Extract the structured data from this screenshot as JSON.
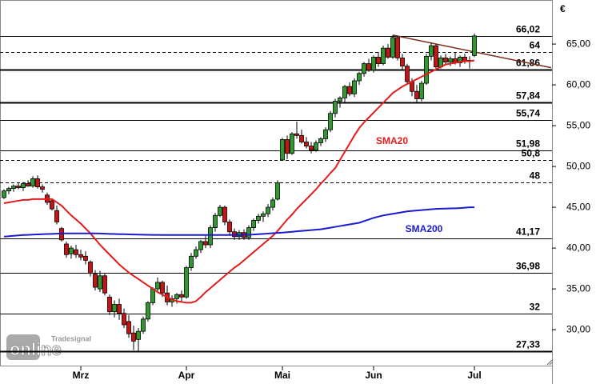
{
  "chart_data": {
    "type": "candlestick",
    "unit": "€",
    "watermark": {
      "brand": "Tradesignal",
      "product": "online"
    },
    "categories": [
      null,
      null,
      null,
      null,
      null,
      null,
      null,
      null,
      null,
      null,
      null,
      null,
      null,
      null,
      null,
      null,
      "Mrz",
      null,
      null,
      null,
      null,
      null,
      null,
      null,
      null,
      null,
      null,
      null,
      null,
      null,
      null,
      null,
      null,
      null,
      null,
      null,
      null,
      null,
      "Apr",
      null,
      null,
      null,
      null,
      null,
      null,
      null,
      null,
      null,
      null,
      null,
      null,
      null,
      null,
      null,
      null,
      null,
      null,
      null,
      "Mai",
      null,
      null,
      null,
      null,
      null,
      null,
      null,
      null,
      null,
      null,
      null,
      null,
      null,
      null,
      null,
      null,
      null,
      null,
      "Jun",
      null,
      null,
      null,
      null,
      null,
      null,
      null,
      null,
      null,
      null,
      null,
      null,
      null,
      null,
      null,
      null,
      null,
      null,
      null,
      null,
      "Jul"
    ],
    "open": [
      46.2,
      47.0,
      47.3,
      47.6,
      47.4,
      47.9,
      47.6,
      48.5,
      47.5,
      46.5,
      45.8,
      44.6,
      42.4,
      40.5,
      39.3,
      39.8,
      39.2,
      39.0,
      38.3,
      36.8,
      35.0,
      36.6,
      34.0,
      32.2,
      33.1,
      32.0,
      31.0,
      29.6,
      28.8,
      29.8,
      31.3,
      33.3,
      35.0,
      35.8,
      34.5,
      33.4,
      33.8,
      34.3,
      34.0,
      37.6,
      39.0,
      39.8,
      40.8,
      40.4,
      42.5,
      44.0,
      45.0,
      43.2,
      42.0,
      41.4,
      41.9,
      41.3,
      42.5,
      43.4,
      43.9,
      44.2,
      45.0,
      46.0,
      50.8,
      53.3,
      51.6,
      54.0,
      53.8,
      53.0,
      52.5,
      52.0,
      52.9,
      53.4,
      54.5,
      56.5,
      58.0,
      58.4,
      59.8,
      58.9,
      60.5,
      61.4,
      62.6,
      61.8,
      63.4,
      62.6,
      64.5,
      63.4,
      65.8,
      63.3,
      62.3,
      60.4,
      59.2,
      58.3,
      60.2,
      63.5,
      64.8,
      62.2,
      63.3,
      62.8,
      63.2,
      62.7,
      63.4,
      62.9,
      63.6
    ],
    "high": [
      47.2,
      47.5,
      47.8,
      48.0,
      48.1,
      48.3,
      48.8,
      48.9,
      47.8,
      46.8,
      46.0,
      45.2,
      42.6,
      40.8,
      40.3,
      40.4,
      39.8,
      39.6,
      38.5,
      37.3,
      37.2,
      37.0,
      34.3,
      33.6,
      33.8,
      32.6,
      31.8,
      30.5,
      30.2,
      31.6,
      33.5,
      35.2,
      36.4,
      36.0,
      35.4,
      34.2,
      34.5,
      34.8,
      37.8,
      39.4,
      40.2,
      41.0,
      41.5,
      42.8,
      44.3,
      45.3,
      45.2,
      43.5,
      42.4,
      42.2,
      42.3,
      42.8,
      43.6,
      44.2,
      44.5,
      45.4,
      46.2,
      48.3,
      53.5,
      53.8,
      54.2,
      55.5,
      54.5,
      53.6,
      53.0,
      53.2,
      53.6,
      54.8,
      56.8,
      58.3,
      58.6,
      60.0,
      60.3,
      60.8,
      61.6,
      62.8,
      63.2,
      63.6,
      64.0,
      64.8,
      65.0,
      66.1,
      66.0,
      63.8,
      62.6,
      60.8,
      60.0,
      60.5,
      63.8,
      65.2,
      65.0,
      63.6,
      63.8,
      63.5,
      64.0,
      63.6,
      63.8,
      63.5,
      66.3
    ],
    "low": [
      46.0,
      46.6,
      46.9,
      47.2,
      47.0,
      47.5,
      47.4,
      47.3,
      46.8,
      45.3,
      44.6,
      42.9,
      40.8,
      38.8,
      38.7,
      38.8,
      38.5,
      38.0,
      36.5,
      34.8,
      34.6,
      34.2,
      31.8,
      31.5,
      31.2,
      30.2,
      29.0,
      27.5,
      27.4,
      29.5,
      31.0,
      33.0,
      34.5,
      34.0,
      33.0,
      32.8,
      33.2,
      33.5,
      33.8,
      37.2,
      38.7,
      39.4,
      40.0,
      40.0,
      42.0,
      43.8,
      42.8,
      41.6,
      41.0,
      41.0,
      41.0,
      41.0,
      42.1,
      43.0,
      43.2,
      43.8,
      44.6,
      45.8,
      50.7,
      50.9,
      51.4,
      53.4,
      52.8,
      52.2,
      51.6,
      51.8,
      52.5,
      53.0,
      54.2,
      56.0,
      57.2,
      57.8,
      58.6,
      58.5,
      60.0,
      61.0,
      61.6,
      61.5,
      62.2,
      62.4,
      63.2,
      63.2,
      63.0,
      61.8,
      60.0,
      58.6,
      57.8,
      58.0,
      60.0,
      63.0,
      61.8,
      62.0,
      62.4,
      62.3,
      62.5,
      62.2,
      62.6,
      62.0,
      63.4
    ],
    "close": [
      47.0,
      47.3,
      47.6,
      47.4,
      47.9,
      47.6,
      48.5,
      47.5,
      47.2,
      45.6,
      44.8,
      43.2,
      41.0,
      39.2,
      40.0,
      39.2,
      38.9,
      38.5,
      36.9,
      35.2,
      36.6,
      34.5,
      32.2,
      33.1,
      32.0,
      30.6,
      29.5,
      28.6,
      29.8,
      31.3,
      33.3,
      35.0,
      35.8,
      34.5,
      33.4,
      33.8,
      34.3,
      34.0,
      37.6,
      39.0,
      39.8,
      40.8,
      40.4,
      42.5,
      44.0,
      45.0,
      43.2,
      42.0,
      41.4,
      41.9,
      41.3,
      42.5,
      43.4,
      43.9,
      44.2,
      45.0,
      45.9,
      48.0,
      53.3,
      51.6,
      54.0,
      53.8,
      53.0,
      52.5,
      52.0,
      52.9,
      53.4,
      54.5,
      56.5,
      58.0,
      58.4,
      59.8,
      58.9,
      60.5,
      61.4,
      62.6,
      61.8,
      63.4,
      62.6,
      64.5,
      63.4,
      65.8,
      63.3,
      62.3,
      60.4,
      59.2,
      58.3,
      60.2,
      63.5,
      64.8,
      62.2,
      63.3,
      62.8,
      63.2,
      62.7,
      63.4,
      62.9,
      63.0,
      66.0
    ],
    "up_color": "#2e9a2e",
    "down_color": "#cc1111",
    "series": [
      {
        "name": "SMA20",
        "color": "#e31b1b",
        "values": [
          45.5,
          45.6,
          45.7,
          45.8,
          45.9,
          45.9,
          46.0,
          46.0,
          46.0,
          46.0,
          46.0,
          45.6,
          45.2,
          44.6,
          44.0,
          43.5,
          43.0,
          42.4,
          41.8,
          41.1,
          40.4,
          39.8,
          39.2,
          38.6,
          38.0,
          37.5,
          37.0,
          36.6,
          36.2,
          35.8,
          35.4,
          35.0,
          34.6,
          34.3,
          34.0,
          33.7,
          33.5,
          33.4,
          33.3,
          33.3,
          33.5,
          34.0,
          34.6,
          35.1,
          35.6,
          36.1,
          36.6,
          37.1,
          37.6,
          38.0,
          38.5,
          39.0,
          39.5,
          40.0,
          40.5,
          41.0,
          41.5,
          42.1,
          42.8,
          43.5,
          44.1,
          44.8,
          45.4,
          46.0,
          46.6,
          47.2,
          47.9,
          48.5,
          49.2,
          49.8,
          50.8,
          51.8,
          52.8,
          53.8,
          54.7,
          55.4,
          56.0,
          56.6,
          57.2,
          57.8,
          58.4,
          59.0,
          59.4,
          59.8,
          60.1,
          60.4,
          60.7,
          61.0,
          61.3,
          61.6,
          61.9,
          62.2,
          62.5,
          62.6,
          62.7,
          62.8,
          62.9,
          62.9,
          63.0
        ]
      },
      {
        "name": "SMA200",
        "color": "#1a1ad0",
        "values": [
          41.4,
          41.45,
          41.5,
          41.55,
          41.6,
          41.62,
          41.65,
          41.68,
          41.7,
          41.72,
          41.74,
          41.76,
          41.78,
          41.8,
          41.8,
          41.8,
          41.8,
          41.8,
          41.8,
          41.8,
          41.78,
          41.76,
          41.74,
          41.72,
          41.7,
          41.7,
          41.68,
          41.66,
          41.65,
          41.64,
          41.63,
          41.62,
          41.61,
          41.6,
          41.6,
          41.6,
          41.6,
          41.6,
          41.6,
          41.6,
          41.6,
          41.6,
          41.6,
          41.6,
          41.6,
          41.6,
          41.6,
          41.6,
          41.6,
          41.6,
          41.62,
          41.64,
          41.66,
          41.7,
          41.74,
          41.78,
          41.82,
          41.86,
          41.9,
          41.95,
          42.0,
          42.05,
          42.1,
          42.15,
          42.2,
          42.25,
          42.3,
          42.4,
          42.5,
          42.6,
          42.7,
          42.8,
          42.9,
          43.0,
          43.1,
          43.3,
          43.5,
          43.7,
          43.85,
          44.0,
          44.1,
          44.2,
          44.3,
          44.4,
          44.5,
          44.55,
          44.6,
          44.65,
          44.7,
          44.75,
          44.8,
          44.82,
          44.84,
          44.86,
          44.88,
          44.9,
          44.95,
          45.0,
          45.0
        ]
      }
    ],
    "trend_line": {
      "color": "#7a2a1a",
      "from": {
        "index": 81,
        "value": 66.1
      },
      "to": {
        "index": 114,
        "value": 62.1
      }
    },
    "levels": [
      {
        "value": 66.02,
        "label": "66,02",
        "style": "solid",
        "width": 1
      },
      {
        "value": 64,
        "label": "64",
        "style": "dashed",
        "width": 1
      },
      {
        "value": 61.86,
        "label": "61,86",
        "style": "solid",
        "width": 2
      },
      {
        "value": 57.84,
        "label": "57,84",
        "style": "solid",
        "width": 2
      },
      {
        "value": 55.74,
        "label": "55,74",
        "style": "solid",
        "width": 1
      },
      {
        "value": 51.98,
        "label": "51,98",
        "style": "solid",
        "width": 1
      },
      {
        "value": 50.8,
        "label": "50,8",
        "style": "dashed",
        "width": 1
      },
      {
        "value": 48,
        "label": "48",
        "style": "dashed",
        "width": 1
      },
      {
        "value": 41.17,
        "label": "41,17",
        "style": "solid",
        "width": 1
      },
      {
        "value": 36.98,
        "label": "36,98",
        "style": "solid",
        "width": 1
      },
      {
        "value": 32,
        "label": "32",
        "style": "solid",
        "width": 1
      },
      {
        "value": 27.33,
        "label": "27,33",
        "style": "solid",
        "width": 2
      }
    ],
    "ylim": [
      25.5,
      70.4
    ],
    "yticks": [
      {
        "value": 30,
        "label": "30,00"
      },
      {
        "value": 35,
        "label": "35,00"
      },
      {
        "value": 40,
        "label": "40,00"
      },
      {
        "value": 45,
        "label": "45,00"
      },
      {
        "value": 50,
        "label": "50,00"
      },
      {
        "value": 55,
        "label": "55,00"
      },
      {
        "value": 60,
        "label": "60,00"
      },
      {
        "value": 65,
        "label": "65,00"
      }
    ]
  }
}
